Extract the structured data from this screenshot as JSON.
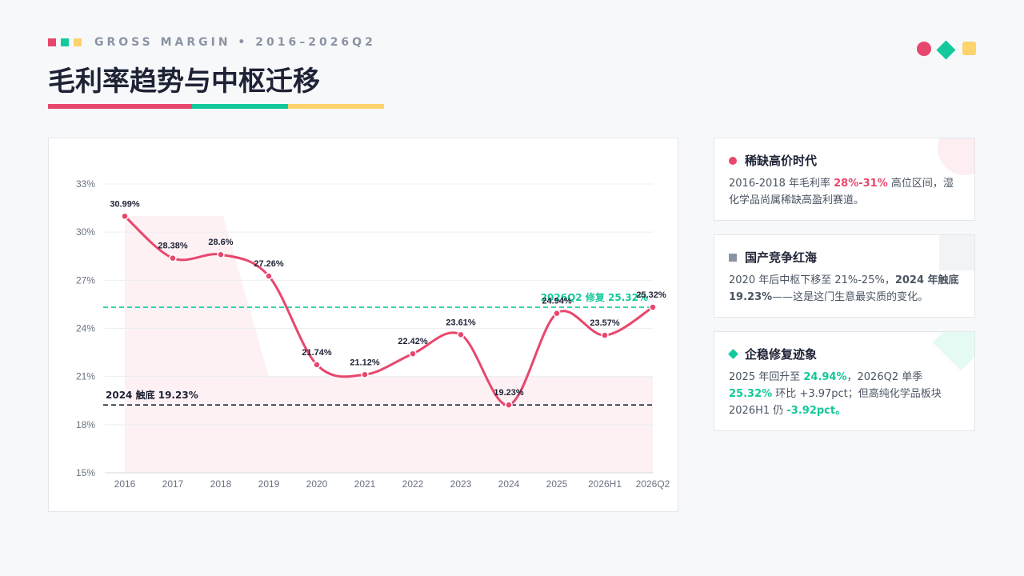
{
  "header": {
    "eyebrow": "GROSS MARGIN • 2016–2026Q2",
    "title": "毛利率趋势与中枢迁移",
    "colors": {
      "red": "#e8476d",
      "green": "#13c99b",
      "yellow": "#fdd36b",
      "navy": "#1e2235",
      "gray": "#8a93a3"
    }
  },
  "chart_data": {
    "type": "line",
    "categories": [
      "2016",
      "2017",
      "2018",
      "2019",
      "2020",
      "2021",
      "2022",
      "2023",
      "2024",
      "2025",
      "2026H1",
      "2026Q2"
    ],
    "series": [
      {
        "values": [
          30.99,
          28.38,
          28.6,
          27.26,
          21.74,
          21.12,
          22.42,
          23.61,
          19.23,
          24.94,
          23.57,
          25.32
        ],
        "labels": [
          "30.99%",
          "28.38%",
          "28.6%",
          "27.26%",
          "21.74%",
          "21.12%",
          "22.42%",
          "23.61%",
          "19.23%",
          "24.94%",
          "23.57%",
          "25.32%"
        ],
        "color": "#e8476d"
      }
    ],
    "yticks": [
      15,
      18,
      21,
      24,
      27,
      30,
      33
    ],
    "ytick_labels": [
      "15%",
      "18%",
      "21%",
      "24%",
      "27%",
      "30%",
      "33%"
    ],
    "ylim": [
      15,
      33
    ],
    "grid": true,
    "reference_lines": [
      {
        "value": 25.32,
        "label": "2026Q2 修复 25.32%",
        "color": "#13c99b"
      },
      {
        "value": 19.23,
        "label": "2024 触底 19.23%",
        "color": "#1e2235"
      }
    ],
    "shaded_band_value": 31
  },
  "cards": [
    {
      "title": "稀缺高价时代",
      "marker": "dot",
      "color": "#e8476d",
      "body": [
        {
          "t": "2016-2018 年毛利率 "
        },
        {
          "t": "28%-31%",
          "b": true,
          "c": "#e8476d"
        },
        {
          "t": " 高位区间，湿化学品尚属稀缺高盈利赛道。"
        }
      ]
    },
    {
      "title": "国产竞争红海",
      "marker": "square",
      "color": "#8a93a3",
      "body": [
        {
          "t": "2020 年后中枢下移至 21%-25%，"
        },
        {
          "t": "2024 年触底 19.23%",
          "b": true,
          "c": "#4b5563"
        },
        {
          "t": "——这是这门生意最实质的变化。"
        }
      ]
    },
    {
      "title": "企稳修复迹象",
      "marker": "diamond",
      "color": "#13c99b",
      "body": [
        {
          "t": "2025 年回升至 "
        },
        {
          "t": "24.94%",
          "b": true,
          "c": "#13c99b"
        },
        {
          "t": "，2026Q2 单季 "
        },
        {
          "t": "25.32%",
          "b": true,
          "c": "#13c99b"
        },
        {
          "t": " 环比 +3.97pct；但高纯化学品板块 2026H1 仍 "
        },
        {
          "t": "-3.92pct。",
          "b": true,
          "c": "#13c99b"
        }
      ]
    }
  ]
}
